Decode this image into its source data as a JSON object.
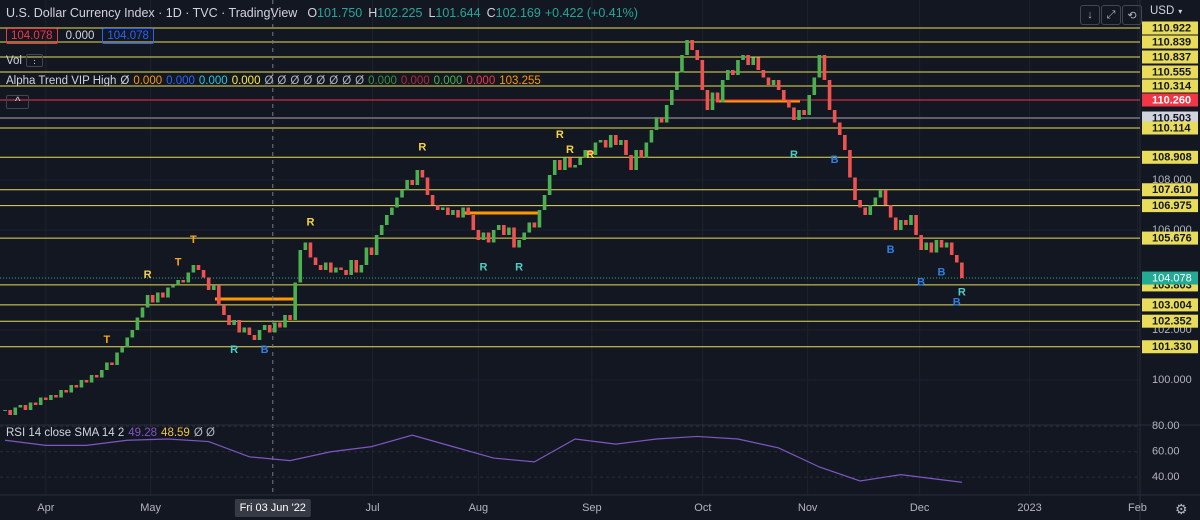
{
  "header": {
    "title": "U.S. Dollar Currency Index · 1D · TVC · TradingView",
    "ohlc": [
      {
        "label": "O",
        "value": "101.750"
      },
      {
        "label": "H",
        "value": "102.225"
      },
      {
        "label": "L",
        "value": "101.644"
      },
      {
        "label": "C",
        "value": "102.169"
      }
    ],
    "change": "+0.422 (+0.41%)",
    "currency": "USD"
  },
  "price_boxes": [
    {
      "text": "104.078",
      "color": "#f23645"
    },
    {
      "text": "0.000"
    },
    {
      "text": "104.078",
      "color": "#2962ff"
    }
  ],
  "volume_label": "Vol",
  "indicator": {
    "name": "Alpha Trend VIP High",
    "values": [
      {
        "text": "Ø",
        "color": "#d1d4dc"
      },
      {
        "text": "0.000",
        "color": "#ff9800"
      },
      {
        "text": "0.000",
        "color": "#2962ff"
      },
      {
        "text": "0.000",
        "color": "#26c6da"
      },
      {
        "text": "0.000",
        "color": "#ffeb3b"
      },
      {
        "text": "Ø",
        "color": "#b2b5be"
      },
      {
        "text": "Ø",
        "color": "#b2b5be"
      },
      {
        "text": "Ø",
        "color": "#b2b5be"
      },
      {
        "text": "Ø",
        "color": "#b2b5be"
      },
      {
        "text": "Ø",
        "color": "#b2b5be"
      },
      {
        "text": "Ø",
        "color": "#b2b5be"
      },
      {
        "text": "Ø",
        "color": "#b2b5be"
      },
      {
        "text": "Ø",
        "color": "#b2b5be"
      },
      {
        "text": "0.000",
        "color": "#388e3c"
      },
      {
        "text": "0.000",
        "color": "#b22833"
      },
      {
        "text": "0.000",
        "color": "#4caf50"
      },
      {
        "text": "0.000",
        "color": "#f23645"
      },
      {
        "text": "103.255",
        "color": "#ff9800"
      }
    ]
  },
  "chart_data": {
    "type": "candlestick",
    "up_color": "#4caf50",
    "down_color": "#ef5350",
    "closes": [
      98.8,
      98.6,
      98.9,
      99.0,
      98.8,
      99.1,
      99.0,
      99.3,
      99.2,
      99.4,
      99.3,
      99.6,
      99.5,
      99.8,
      99.7,
      100.0,
      99.9,
      100.2,
      100.1,
      100.4,
      100.7,
      100.6,
      101.1,
      101.3,
      101.7,
      102.0,
      102.5,
      102.9,
      103.4,
      103.1,
      103.5,
      103.3,
      103.7,
      103.8,
      104.0,
      103.9,
      104.3,
      104.6,
      104.4,
      104.1,
      103.6,
      103.8,
      103.0,
      102.6,
      102.2,
      102.4,
      101.9,
      102.1,
      101.8,
      101.6,
      102.0,
      102.2,
      101.9,
      102.3,
      102.1,
      102.6,
      102.4,
      103.9,
      105.2,
      105.5,
      104.9,
      104.6,
      104.4,
      104.7,
      104.3,
      104.5,
      104.4,
      104.2,
      104.8,
      104.3,
      104.6,
      105.3,
      105.0,
      105.8,
      106.2,
      106.6,
      106.9,
      107.3,
      107.6,
      108.0,
      107.8,
      108.4,
      108.1,
      107.4,
      107.0,
      106.8,
      106.9,
      106.6,
      106.8,
      106.5,
      106.9,
      106.6,
      106.0,
      105.6,
      105.9,
      105.5,
      106.0,
      106.2,
      105.8,
      106.1,
      105.3,
      105.6,
      105.9,
      106.3,
      106.1,
      106.8,
      107.4,
      108.2,
      108.8,
      108.4,
      108.9,
      108.5,
      108.6,
      108.9,
      109.2,
      109.0,
      109.5,
      109.6,
      109.3,
      109.8,
      109.4,
      109.6,
      109.0,
      108.4,
      109.2,
      108.9,
      109.5,
      110.0,
      110.5,
      110.3,
      111.0,
      111.6,
      112.3,
      113.0,
      113.6,
      113.2,
      112.8,
      111.6,
      110.8,
      111.5,
      111.1,
      112.0,
      112.4,
      112.2,
      112.8,
      113.0,
      112.6,
      112.9,
      112.4,
      112.1,
      111.8,
      112.0,
      111.6,
      111.2,
      110.9,
      110.4,
      110.8,
      110.6,
      111.4,
      112.1,
      113.0,
      112.0,
      110.8,
      110.3,
      109.8,
      109.2,
      108.1,
      107.2,
      106.9,
      106.6,
      107.0,
      107.3,
      107.6,
      107.0,
      106.5,
      106.0,
      106.4,
      106.2,
      106.6,
      105.8,
      105.2,
      105.5,
      105.1,
      105.6,
      105.3,
      105.5,
      105.0,
      104.7,
      104.078
    ],
    "ylim": [
      98.2,
      115.2
    ],
    "yticks": [
      {
        "value": 108,
        "label": "108.000"
      },
      {
        "value": 106,
        "label": "106.000"
      },
      {
        "value": 102,
        "label": "102.000"
      },
      {
        "value": 100,
        "label": "100.000"
      }
    ],
    "levels": [
      {
        "value": 114.08,
        "label": "110.922",
        "color": "#e8dc5a"
      },
      {
        "value": 113.52,
        "label": "110.839",
        "color": "#e8dc5a"
      },
      {
        "value": 112.92,
        "label": "110.837",
        "color": "#e8dc5a"
      },
      {
        "value": 112.32,
        "label": "110.555",
        "color": "#e8dc5a"
      },
      {
        "value": 111.76,
        "label": "110.314",
        "color": "#e8dc5a"
      },
      {
        "value": 111.2,
        "label": "110.260",
        "color": "#f23645"
      },
      {
        "value": 110.48,
        "label": "110.503",
        "color": "#d1d4dc"
      },
      {
        "value": 110.08,
        "label": "110.114",
        "color": "#e8dc5a"
      },
      {
        "value": 108.908,
        "color": "#e8dc5a"
      },
      {
        "value": 107.61,
        "label": "107.610",
        "color": "#e8dc5a"
      },
      {
        "value": 106.975,
        "color": "#e8dc5a"
      },
      {
        "value": 105.676,
        "color": "#e8dc5a"
      },
      {
        "value": 103.803,
        "color": "#e8dc5a"
      },
      {
        "value": 103.004,
        "color": "#e8dc5a"
      },
      {
        "value": 102.352,
        "color": "#e8dc5a"
      },
      {
        "value": 101.33,
        "label": "101.330",
        "color": "#e8dc5a"
      }
    ],
    "last_price": {
      "value": 104.078,
      "color": "#22ab94"
    },
    "xlim": [
      -1,
      223
    ],
    "xticks": [
      {
        "value": 8,
        "label": "Apr"
      },
      {
        "value": 28.6,
        "label": "May"
      },
      {
        "value": 72.2,
        "label": "Jul"
      },
      {
        "value": 93,
        "label": "Aug"
      },
      {
        "value": 115.3,
        "label": "Sep"
      },
      {
        "value": 137.1,
        "label": "Oct"
      },
      {
        "value": 157.7,
        "label": "Nov"
      },
      {
        "value": 179.7,
        "label": "Dec"
      },
      {
        "value": 201.3,
        "label": "2023"
      },
      {
        "value": 222.5,
        "label": "Feb"
      }
    ],
    "crosshair": {
      "value": 52.6,
      "label": "Fri 03 Jun '22"
    },
    "annotations": [
      {
        "text": "T",
        "x": 20,
        "y": 101.6,
        "color": "#f7a51c"
      },
      {
        "text": "R",
        "x": 28,
        "y": 104.2,
        "color": "#f5d442"
      },
      {
        "text": "T",
        "x": 34,
        "y": 104.7,
        "color": "#f7a51c"
      },
      {
        "text": "T",
        "x": 37,
        "y": 105.6,
        "color": "#f7a51c"
      },
      {
        "text": "R",
        "x": 45,
        "y": 101.2,
        "color": "#4ecdc4"
      },
      {
        "text": "B",
        "x": 51,
        "y": 101.2,
        "color": "#2f7fdf"
      },
      {
        "text": "R",
        "x": 60,
        "y": 106.3,
        "color": "#f5d442"
      },
      {
        "text": "R",
        "x": 82,
        "y": 109.3,
        "color": "#f5d442"
      },
      {
        "text": "R",
        "x": 94,
        "y": 104.5,
        "color": "#4ecdc4"
      },
      {
        "text": "R",
        "x": 101,
        "y": 104.5,
        "color": "#4ecdc4"
      },
      {
        "text": "R",
        "x": 109,
        "y": 109.8,
        "color": "#f5d442"
      },
      {
        "text": "R",
        "x": 111,
        "y": 109.2,
        "color": "#f5d442"
      },
      {
        "text": "R",
        "x": 115,
        "y": 109,
        "color": "#f5d442"
      },
      {
        "text": "R",
        "x": 155,
        "y": 109,
        "color": "#4ecdc4"
      },
      {
        "text": "B",
        "x": 163,
        "y": 108.8,
        "color": "#2f7fdf"
      },
      {
        "text": "B",
        "x": 174,
        "y": 105.2,
        "color": "#2f7fdf"
      },
      {
        "text": "B",
        "x": 180,
        "y": 103.9,
        "color": "#2f7fdf"
      },
      {
        "text": "B",
        "x": 184,
        "y": 104.3,
        "color": "#2f7fdf"
      },
      {
        "text": "R",
        "x": 188,
        "y": 103.5,
        "color": "#4ecdc4"
      },
      {
        "text": "B",
        "x": 187,
        "y": 103.1,
        "color": "#2f7fdf"
      }
    ],
    "rsi": {
      "type": "line",
      "label": "RSI 14 close SMA 14 2",
      "rsi_value": 49.28,
      "rsi_color": "#7e57c2",
      "sma_value": 48.59,
      "sma_color": "#f0c43c",
      "extra": "Ø Ø",
      "color": "#7e57c2",
      "x": [
        0,
        8,
        16,
        24,
        32,
        40,
        48,
        56,
        64,
        72,
        80,
        88,
        96,
        104,
        112,
        120,
        128,
        136,
        144,
        152,
        160,
        168,
        176,
        184,
        188
      ],
      "values": [
        69,
        65,
        65,
        69,
        70,
        68,
        56,
        53,
        60,
        64,
        73,
        64,
        55,
        52,
        70,
        66,
        70,
        72,
        70,
        63,
        48,
        37,
        42,
        38,
        36
      ],
      "ylim": [
        26,
        81
      ],
      "yticks": [
        {
          "value": 80,
          "label": "80.00"
        },
        {
          "value": 60,
          "label": "60.00"
        },
        {
          "value": 40,
          "label": "40.00"
        }
      ]
    }
  }
}
